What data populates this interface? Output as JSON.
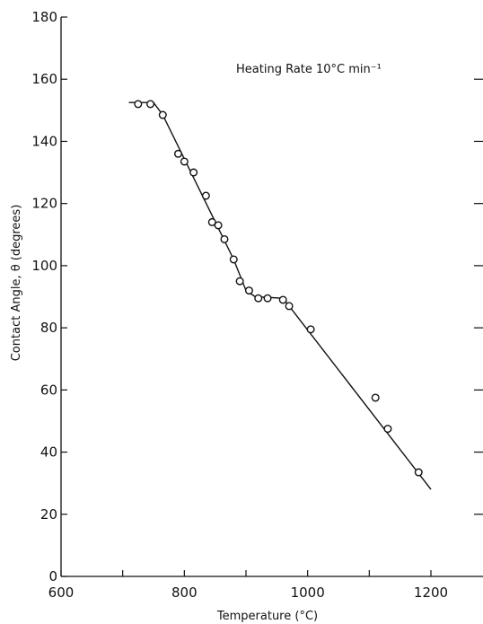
{
  "chart_data": {
    "type": "scatter",
    "title": "",
    "xlabel": "Temperature (°C)",
    "ylabel": "Contact Angle, θ (degrees)",
    "xlim": [
      600,
      1250
    ],
    "ylim": [
      0,
      180
    ],
    "xticks": [
      600,
      800,
      1000,
      1200
    ],
    "yticks": [
      0,
      20,
      40,
      60,
      80,
      100,
      120,
      140,
      160,
      180
    ],
    "x_minor_ticks": [
      700,
      900,
      1100
    ],
    "grid": false,
    "legend": "none",
    "annotations": [
      {
        "text": "Heating Rate  10°C min⁻¹"
      }
    ],
    "series": [
      {
        "points": [
          [
            725,
            152
          ],
          [
            745,
            152
          ],
          [
            765,
            148.5
          ],
          [
            790,
            136
          ],
          [
            800,
            133.5
          ],
          [
            815,
            130
          ],
          [
            835,
            122.5
          ],
          [
            845,
            114
          ],
          [
            855,
            113
          ],
          [
            865,
            108.5
          ],
          [
            880,
            102
          ],
          [
            890,
            95
          ],
          [
            905,
            92
          ],
          [
            920,
            89.5
          ],
          [
            935,
            89.5
          ],
          [
            960,
            89
          ],
          [
            970,
            87
          ],
          [
            1005,
            79.5
          ],
          [
            1110,
            57.5
          ],
          [
            1130,
            47.5
          ],
          [
            1180,
            33.5
          ]
        ],
        "fit_line": [
          [
            710,
            152.5
          ],
          [
            750,
            152.5
          ],
          [
            765,
            148.5
          ],
          [
            880,
            102
          ],
          [
            900,
            92
          ],
          [
            915,
            90
          ],
          [
            960,
            89.5
          ],
          [
            970,
            87
          ],
          [
            1200,
            28
          ]
        ]
      }
    ]
  }
}
